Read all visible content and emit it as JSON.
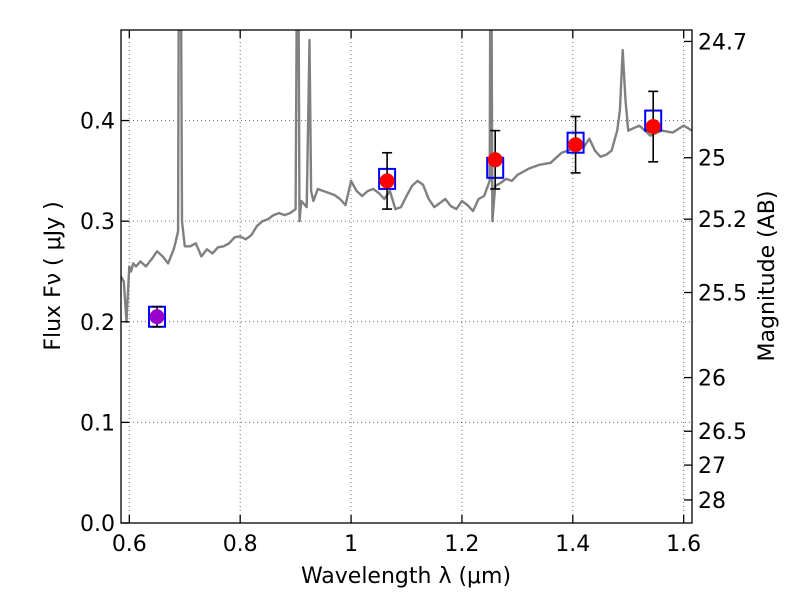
{
  "chart_data": {
    "type": "line",
    "title": "",
    "xlabel": "Wavelength  λ (μm)",
    "ylabel": "Flux  Fν  ( μJy )",
    "y2label": "Magnitude (AB)",
    "xlim": [
      0.585,
      1.615
    ],
    "ylim": [
      0.0,
      0.49
    ],
    "x_ticks": [
      {
        "value": 0.6,
        "label": "0.6"
      },
      {
        "value": 0.8,
        "label": "0.8"
      },
      {
        "value": 1.0,
        "label": "1"
      },
      {
        "value": 1.2,
        "label": "1.2"
      },
      {
        "value": 1.4,
        "label": "1.4"
      },
      {
        "value": 1.6,
        "label": "1.6"
      }
    ],
    "y_ticks": [
      {
        "value": 0.0,
        "label": "0.0"
      },
      {
        "value": 0.1,
        "label": "0.1"
      },
      {
        "value": 0.2,
        "label": "0.2"
      },
      {
        "value": 0.3,
        "label": "0.3"
      },
      {
        "value": 0.4,
        "label": "0.4"
      }
    ],
    "y2_ticks": [
      {
        "value": 24.7,
        "label": "24.7"
      },
      {
        "value": 25.0,
        "label": "25"
      },
      {
        "value": 25.2,
        "label": "25.2"
      },
      {
        "value": 25.5,
        "label": "25.5"
      },
      {
        "value": 26.0,
        "label": "26"
      },
      {
        "value": 26.5,
        "label": "26.5"
      },
      {
        "value": 27.0,
        "label": "27"
      },
      {
        "value": 28.0,
        "label": "28"
      }
    ],
    "grid": true,
    "colors": {
      "spectrum": "#808080",
      "model_box": "#0000ff",
      "observed_point": "#ff0000",
      "upper_point": "#9900cc",
      "error_bar": "#000000"
    },
    "spectrum": {
      "x": [
        0.585,
        0.59,
        0.595,
        0.6,
        0.603,
        0.607,
        0.612,
        0.62,
        0.63,
        0.64,
        0.65,
        0.66,
        0.67,
        0.68,
        0.683,
        0.688,
        0.69,
        0.692,
        0.695,
        0.7,
        0.71,
        0.72,
        0.73,
        0.74,
        0.75,
        0.76,
        0.77,
        0.78,
        0.79,
        0.8,
        0.81,
        0.82,
        0.83,
        0.84,
        0.85,
        0.86,
        0.87,
        0.88,
        0.89,
        0.9,
        0.904,
        0.907,
        0.91,
        0.92,
        0.925,
        0.928,
        0.932,
        0.94,
        0.95,
        0.96,
        0.97,
        0.98,
        0.99,
        1.0,
        1.01,
        1.02,
        1.03,
        1.04,
        1.05,
        1.06,
        1.07,
        1.08,
        1.09,
        1.1,
        1.11,
        1.12,
        1.13,
        1.14,
        1.15,
        1.16,
        1.17,
        1.18,
        1.19,
        1.2,
        1.21,
        1.22,
        1.23,
        1.24,
        1.25,
        1.252,
        1.255,
        1.26,
        1.27,
        1.28,
        1.29,
        1.3,
        1.32,
        1.34,
        1.36,
        1.38,
        1.4,
        1.42,
        1.43,
        1.44,
        1.45,
        1.46,
        1.47,
        1.48,
        1.485,
        1.49,
        1.495,
        1.5,
        1.52,
        1.54,
        1.56,
        1.58,
        1.6,
        1.615
      ],
      "y": [
        0.245,
        0.24,
        0.2,
        0.255,
        0.25,
        0.258,
        0.255,
        0.26,
        0.255,
        0.262,
        0.27,
        0.265,
        0.258,
        0.272,
        0.278,
        0.29,
        0.7,
        0.7,
        0.3,
        0.275,
        0.275,
        0.278,
        0.265,
        0.272,
        0.268,
        0.274,
        0.275,
        0.278,
        0.284,
        0.285,
        0.282,
        0.286,
        0.295,
        0.3,
        0.302,
        0.306,
        0.308,
        0.306,
        0.308,
        0.312,
        0.7,
        0.3,
        0.32,
        0.314,
        0.48,
        0.33,
        0.32,
        0.332,
        0.33,
        0.328,
        0.326,
        0.322,
        0.316,
        0.34,
        0.33,
        0.325,
        0.33,
        0.332,
        0.328,
        0.322,
        0.33,
        0.312,
        0.314,
        0.325,
        0.335,
        0.34,
        0.336,
        0.322,
        0.314,
        0.318,
        0.322,
        0.315,
        0.312,
        0.32,
        0.316,
        0.31,
        0.322,
        0.325,
        0.34,
        0.7,
        0.3,
        0.335,
        0.338,
        0.342,
        0.34,
        0.346,
        0.352,
        0.356,
        0.358,
        0.368,
        0.372,
        0.374,
        0.382,
        0.37,
        0.364,
        0.366,
        0.37,
        0.39,
        0.41,
        0.47,
        0.42,
        0.39,
        0.395,
        0.385,
        0.39,
        0.388,
        0.395,
        0.39
      ]
    },
    "model_boxes": [
      {
        "x": 0.65,
        "y": 0.205
      },
      {
        "x": 1.065,
        "y": 0.342
      },
      {
        "x": 1.26,
        "y": 0.353
      },
      {
        "x": 1.405,
        "y": 0.378
      },
      {
        "x": 1.545,
        "y": 0.4
      }
    ],
    "observed_points": [
      {
        "x": 1.065,
        "y": 0.34,
        "err": 0.028
      },
      {
        "x": 1.26,
        "y": 0.361,
        "err": 0.029
      },
      {
        "x": 1.405,
        "y": 0.376,
        "err": 0.028
      },
      {
        "x": 1.545,
        "y": 0.394,
        "err": 0.035
      }
    ],
    "upper_points": [
      {
        "x": 0.65,
        "y": 0.205,
        "err": 0.01
      }
    ]
  }
}
